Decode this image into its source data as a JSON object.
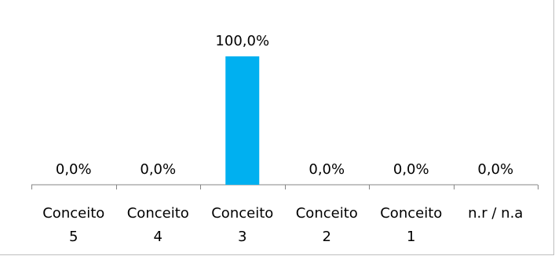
{
  "chart_data": {
    "type": "bar",
    "categories": [
      [
        "Conceito",
        "5"
      ],
      [
        "Conceito",
        "4"
      ],
      [
        "Conceito",
        "3"
      ],
      [
        "Conceito",
        "2"
      ],
      [
        "Conceito",
        "1"
      ],
      [
        "n.r / n.a"
      ]
    ],
    "values": [
      0.0,
      0.0,
      100.0,
      0.0,
      0.0,
      0.0
    ],
    "data_labels": [
      "0,0%",
      "0,0%",
      "100,0%",
      "0,0%",
      "0,0%",
      "0,0%"
    ],
    "ylim": [
      0,
      100
    ],
    "grid": false,
    "legend": "none",
    "bar_color": "#00b0f0",
    "axis_color": "#868686"
  }
}
